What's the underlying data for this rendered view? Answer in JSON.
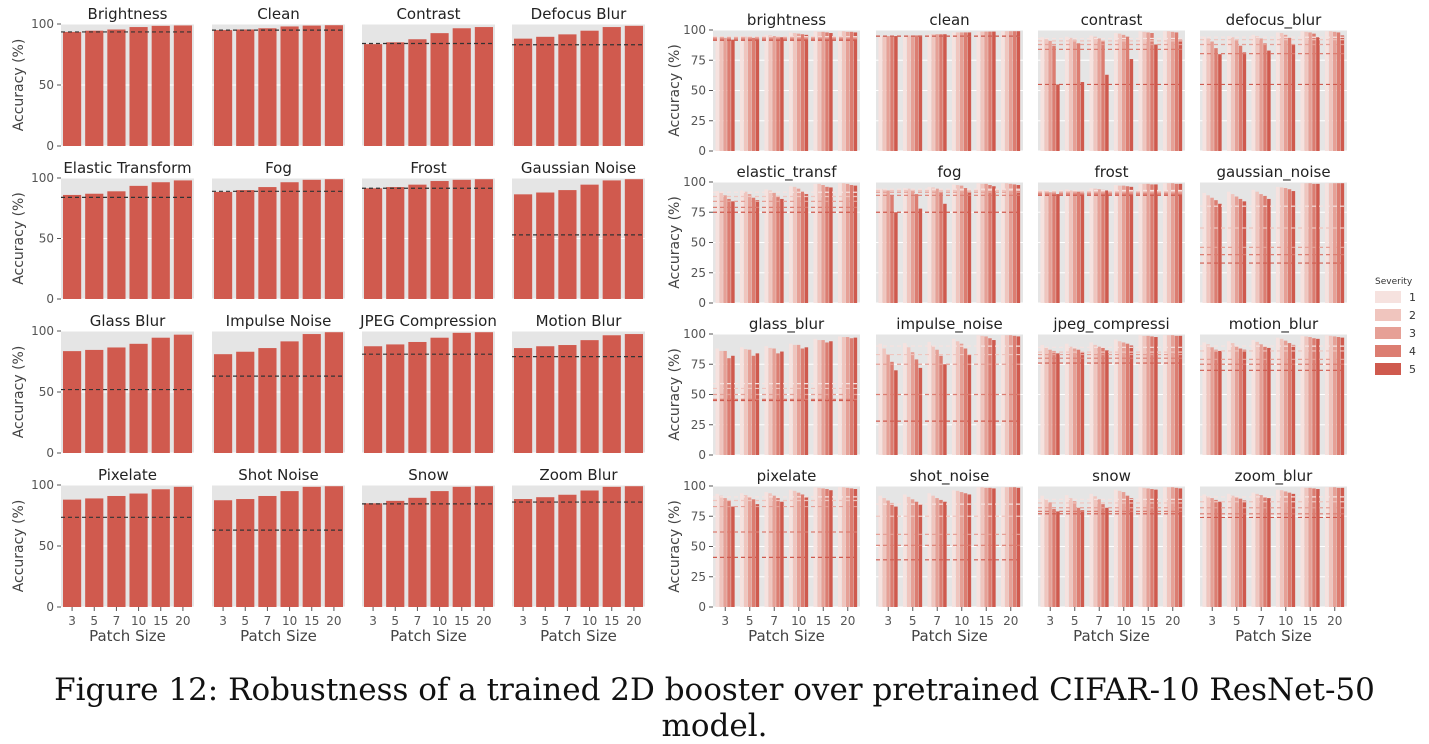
{
  "caption": "Figure 12: Robustness of a trained 2D booster over pretrained CIFAR-10 ResNet-50 model.",
  "colors": {
    "bar": "#d05a4e",
    "panel_bg": "#e5e5e5",
    "severity_panel_bg": "#f5e7e5",
    "baseline": "#333333",
    "severity_1": "#f6e2df",
    "severity_2": "#f0c5be",
    "severity_3": "#e6a096",
    "severity_4": "#dc7d71",
    "severity_5": "#cf5a4e"
  },
  "chart_data": [
    {
      "type": "bar",
      "facet_titles": [
        "Brightness",
        "Clean",
        "Contrast",
        "Defocus Blur",
        "Elastic Transform",
        "Fog",
        "Frost",
        "Gaussian Noise",
        "Glass Blur",
        "Impulse Noise",
        "JPEG Compression",
        "Motion Blur",
        "Pixelate",
        "Shot Noise",
        "Snow",
        "Zoom Blur"
      ],
      "categories": [
        "3",
        "5",
        "7",
        "10",
        "15",
        "20"
      ],
      "xlabel": "Patch Size",
      "ylabel": "Accuracy (%)",
      "ylim": [
        0,
        100
      ],
      "yticks": [
        "0",
        "50",
        "100"
      ],
      "series": [
        {
          "values": [
            93.5,
            94.5,
            95.5,
            97.5,
            98.5,
            98.8
          ],
          "baseline": 93.5
        },
        {
          "values": [
            95,
            95.5,
            96.5,
            98,
            98.7,
            99
          ],
          "baseline": 95
        },
        {
          "values": [
            83.5,
            85,
            87.5,
            92.5,
            96.5,
            97.5
          ],
          "baseline": 84
        },
        {
          "values": [
            88,
            89.5,
            91.5,
            94.5,
            97.5,
            98.5
          ],
          "baseline": 83
        },
        {
          "values": [
            86,
            87,
            89,
            93.5,
            96.5,
            98
          ],
          "baseline": 84
        },
        {
          "values": [
            88.5,
            90,
            92.5,
            96.5,
            98.5,
            99
          ],
          "baseline": 89
        },
        {
          "values": [
            91.5,
            92.5,
            94.5,
            97.5,
            98.5,
            99
          ],
          "baseline": 91.5
        },
        {
          "values": [
            86.5,
            88,
            90,
            94.5,
            98,
            99
          ],
          "baseline": 53
        },
        {
          "values": [
            83.5,
            84.5,
            86.5,
            89.5,
            94.5,
            97
          ],
          "baseline": 52
        },
        {
          "values": [
            81,
            83,
            86,
            91.5,
            97.5,
            99
          ],
          "baseline": 63
        },
        {
          "values": [
            87.5,
            89,
            91,
            94.5,
            98.5,
            99
          ],
          "baseline": 81
        },
        {
          "values": [
            86,
            87.5,
            88.5,
            92.5,
            96.5,
            97.5
          ],
          "baseline": 79
        },
        {
          "values": [
            88,
            89,
            91,
            93,
            96.5,
            98.5
          ],
          "baseline": 73.5
        },
        {
          "values": [
            87.5,
            88.5,
            91,
            95,
            98.5,
            99
          ],
          "baseline": 63
        },
        {
          "values": [
            85,
            87,
            89.5,
            95,
            98.5,
            99
          ],
          "baseline": 84.5
        },
        {
          "values": [
            88.5,
            90,
            92,
            95.5,
            98.5,
            99
          ],
          "baseline": 86
        }
      ]
    },
    {
      "type": "bar",
      "facet_titles": [
        "brightness",
        "clean",
        "contrast",
        "defocus_blur",
        "elastic_transf",
        "fog",
        "frost",
        "gaussian_noise",
        "glass_blur",
        "impulse_noise",
        "jpeg_compressi",
        "motion_blur",
        "pixelate",
        "shot_noise",
        "snow",
        "zoom_blur"
      ],
      "categories": [
        "3",
        "5",
        "7",
        "10",
        "15",
        "20"
      ],
      "xlabel": "Patch Size",
      "ylabel": "Accuracy (%)",
      "ylim": [
        0,
        100
      ],
      "yticks": [
        "0",
        "25",
        "50",
        "75",
        "100"
      ],
      "legend": {
        "title": "Severity",
        "entries": [
          "1",
          "2",
          "3",
          "4",
          "5"
        ],
        "placement": "right"
      },
      "series": [
        {
          "values": [
            [
              94,
              94,
              93.5,
              93,
              92
            ],
            [
              95,
              94.5,
              94,
              93.5,
              93
            ],
            [
              96,
              95.5,
              95,
              94.5,
              94
            ],
            [
              98,
              97.5,
              97,
              96.5,
              96
            ],
            [
              99,
              98.5,
              98.5,
              98,
              97.5
            ],
            [
              99,
              99,
              98.5,
              98.5,
              98
            ]
          ],
          "baseline": [
            94.5,
            94,
            93.5,
            92.5,
            91.5
          ]
        },
        {
          "values": [
            [
              95,
              95,
              95,
              95,
              95
            ],
            [
              95.5,
              95.5,
              95.5,
              95.5,
              95.5
            ],
            [
              96.5,
              96.5,
              96.5,
              96.5,
              96.5
            ],
            [
              98,
              98,
              98,
              98,
              98
            ],
            [
              98.7,
              98.7,
              98.7,
              98.7,
              98.7
            ],
            [
              99,
              99,
              99,
              99,
              99
            ]
          ],
          "baseline": [
            95,
            95,
            95,
            95,
            95
          ]
        },
        {
          "values": [
            [
              94,
              92.5,
              91,
              87,
              55
            ],
            [
              94.5,
              93.5,
              92,
              89,
              57
            ],
            [
              95.5,
              94.5,
              93,
              90.5,
              63
            ],
            [
              97.5,
              97,
              96,
              94.5,
              76
            ],
            [
              99,
              98.5,
              98,
              97.5,
              88
            ],
            [
              99,
              99,
              98.5,
              98,
              92
            ]
          ],
          "baseline": [
            93,
            91,
            88,
            84,
            55
          ]
        },
        {
          "values": [
            [
              94.5,
              93,
              90.5,
              85,
              80
            ],
            [
              95,
              94,
              91.5,
              87,
              81.5
            ],
            [
              96,
              95,
              93,
              89,
              83
            ],
            [
              98,
              97.5,
              96,
              93.5,
              88
            ],
            [
              99,
              98.5,
              98,
              97,
              94
            ],
            [
              99,
              99,
              98.5,
              98,
              95.5
            ]
          ],
          "baseline": [
            94,
            92,
            88,
            80.5,
            55
          ]
        },
        {
          "values": [
            [
              92.5,
              91,
              89,
              86,
              84
            ],
            [
              93,
              92,
              90,
              87,
              85
            ],
            [
              94,
              93,
              91,
              88.5,
              86
            ],
            [
              96.5,
              96,
              94.5,
              92,
              90
            ],
            [
              98.5,
              98.5,
              97.5,
              96,
              95.5
            ],
            [
              99,
              99,
              98.5,
              97.5,
              97
            ]
          ],
          "baseline": [
            91.5,
            88,
            84,
            79,
            75
          ]
        },
        {
          "values": [
            [
              94.5,
              94,
              93,
              89,
              75
            ],
            [
              95,
              94.5,
              93.5,
              90,
              78
            ],
            [
              96,
              95.5,
              94.5,
              91.5,
              82
            ],
            [
              98,
              97.5,
              97,
              95,
              92
            ],
            [
              99,
              98.5,
              98.5,
              97.5,
              96.5
            ],
            [
              99,
              99,
              98.5,
              98,
              97.5
            ]
          ],
          "baseline": [
            94,
            93,
            91.5,
            89,
            75
          ]
        },
        {
          "values": [
            [
              93.5,
              92.5,
              91.5,
              91,
              90
            ],
            [
              94,
              93,
              92.5,
              92,
              91
            ],
            [
              95,
              94.5,
              94,
              93.5,
              93
            ],
            [
              97.5,
              97,
              97,
              96.5,
              96
            ],
            [
              98.5,
              98.5,
              98.5,
              98,
              98
            ],
            [
              99,
              99,
              99,
              98.5,
              98.5
            ]
          ],
          "baseline": [
            93,
            92,
            91,
            90,
            89
          ]
        },
        {
          "values": [
            [
              91,
              89,
              87,
              85,
              82
            ],
            [
              92,
              90,
              88,
              86,
              84
            ],
            [
              93.5,
              92,
              90,
              88.5,
              86
            ],
            [
              96,
              95.5,
              95,
              94,
              92.5
            ],
            [
              99,
              99,
              99,
              98.5,
              98.5
            ],
            [
              99,
              99,
              99,
              99,
              99
            ]
          ],
          "baseline": [
            80,
            62,
            46,
            40,
            33
          ]
        },
        {
          "values": [
            [
              88,
              86,
              86,
              80,
              82
            ],
            [
              89,
              87.5,
              87,
              82,
              84
            ],
            [
              90,
              88.5,
              88,
              84,
              85.5
            ],
            [
              92,
              91,
              91,
              88,
              89
            ],
            [
              96,
              95,
              95,
              93,
              94
            ],
            [
              98,
              97.5,
              97.5,
              96.5,
              97
            ]
          ],
          "baseline": [
            59,
            55,
            50,
            46,
            45
          ]
        },
        {
          "values": [
            [
              92,
              88,
              83,
              77,
              70
            ],
            [
              92.5,
              89,
              85,
              79,
              72
            ],
            [
              93.5,
              90.5,
              87,
              82,
              75
            ],
            [
              96,
              94,
              92,
              88,
              83
            ],
            [
              99,
              98.5,
              98,
              96.5,
              95
            ],
            [
              99,
              99,
              99,
              98.5,
              98
            ]
          ],
          "baseline": [
            90,
            83,
            75,
            50,
            28
          ]
        },
        {
          "values": [
            [
              91,
              88.5,
              87,
              86,
              84
            ],
            [
              92,
              89.5,
              88,
              87,
              85
            ],
            [
              93,
              91,
              89.5,
              88.5,
              86.5
            ],
            [
              95.5,
              94,
              93,
              92,
              90.5
            ],
            [
              99,
              98.5,
              98.5,
              98,
              97.5
            ],
            [
              99,
              99,
              99,
              98.5,
              98.5
            ]
          ],
          "baseline": [
            89,
            85,
            83,
            80,
            76
          ]
        },
        {
          "values": [
            [
              93,
              91.5,
              89,
              87,
              86
            ],
            [
              94,
              92.5,
              90,
              88,
              87
            ],
            [
              95,
              93.5,
              91.5,
              89.5,
              88.5
            ],
            [
              97,
              96,
              94.5,
              92.5,
              91
            ],
            [
              98.5,
              98,
              97.5,
              96.5,
              96
            ],
            [
              99,
              98.5,
              98,
              97.5,
              97
            ]
          ],
          "baseline": [
            90,
            86,
            79,
            75,
            70
          ]
        },
        {
          "values": [
            [
              93.5,
              92,
              90,
              88,
              83
            ],
            [
              94,
              92.5,
              91,
              89,
              85
            ],
            [
              95,
              94,
              92,
              90,
              87
            ],
            [
              97,
              96,
              94.5,
              93,
              91
            ],
            [
              99,
              98.5,
              98,
              97.5,
              96.5
            ],
            [
              99,
              99,
              98.5,
              98,
              97.5
            ]
          ],
          "baseline": [
            91,
            88,
            83,
            62,
            41
          ]
        },
        {
          "values": [
            [
              92,
              90,
              88,
              86,
              83
            ],
            [
              93,
              91,
              89,
              87,
              85
            ],
            [
              94,
              92,
              90,
              88.5,
              87
            ],
            [
              96.5,
              96,
              95,
              94,
              93
            ],
            [
              99,
              99,
              98.5,
              98.5,
              98
            ],
            [
              99,
              99,
              99,
              99,
              98.5
            ]
          ],
          "baseline": [
            85,
            75,
            60,
            51,
            39
          ]
        },
        {
          "values": [
            [
              92,
              89,
              86.5,
              81,
              79
            ],
            [
              92.5,
              90,
              87.5,
              82,
              80
            ],
            [
              93.5,
              91.5,
              89,
              85,
              82
            ],
            [
              97,
              96,
              95,
              92,
              90
            ],
            [
              99,
              98.5,
              98,
              97.5,
              97
            ],
            [
              99,
              99,
              99,
              98.5,
              98
            ]
          ],
          "baseline": [
            89,
            86,
            82,
            79,
            77
          ]
        },
        {
          "values": [
            [
              93,
              91.5,
              90,
              88.5,
              87
            ],
            [
              93.5,
              92,
              91,
              89.5,
              88
            ],
            [
              94.5,
              93.5,
              92.5,
              91,
              90
            ],
            [
              97,
              96.5,
              95.5,
              94.5,
              93.5
            ],
            [
              99,
              98.5,
              98.5,
              98,
              97.5
            ],
            [
              99,
              99,
              99,
              98.5,
              98.5
            ]
          ],
          "baseline": [
            91,
            87,
            82,
            77,
            74
          ]
        }
      ]
    }
  ]
}
